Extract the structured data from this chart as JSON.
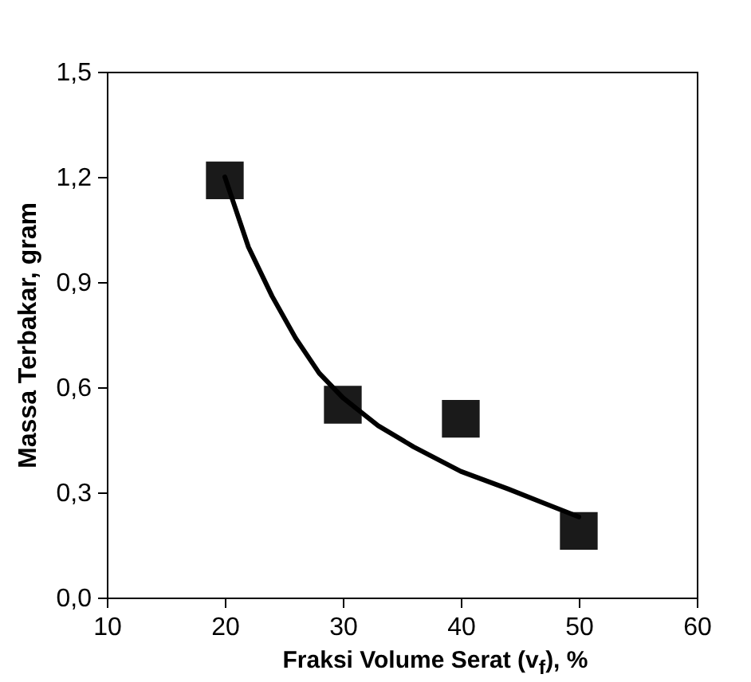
{
  "chart_data": {
    "type": "scatter",
    "xlabel": "Fraksi Volume Serat (v$_{f}$), %",
    "ylabel": "Massa Terbakar, gram",
    "xlim": [
      10,
      60
    ],
    "xticks": [
      10,
      20,
      30,
      40,
      50,
      60
    ],
    "ylim": [
      0,
      1.5
    ],
    "yticks": [
      {
        "value": 0,
        "label": "0,0"
      },
      {
        "value": 0.3,
        "label": "0,3"
      },
      {
        "value": 0.6,
        "label": "0,6"
      },
      {
        "value": 0.9,
        "label": "0,9"
      },
      {
        "value": 1.2,
        "label": "1,2"
      },
      {
        "value": 1.5,
        "label": "1,5"
      }
    ],
    "grid": false,
    "marker": "square",
    "x": [
      20,
      30,
      40,
      50
    ],
    "series": [
      {
        "type": "scatter",
        "color": "#1a1a1a",
        "values": [
          1.19,
          0.55,
          0.51,
          0.19
        ]
      },
      {
        "type": "line",
        "color": "#000000",
        "line_style": "solid",
        "marker": "none",
        "x": [
          20,
          22,
          24,
          26,
          28,
          30,
          33,
          36,
          40,
          44,
          47,
          50
        ],
        "values": [
          1.2,
          1.0,
          0.86,
          0.74,
          0.64,
          0.57,
          0.49,
          0.43,
          0.36,
          0.31,
          0.27,
          0.23
        ]
      }
    ]
  }
}
